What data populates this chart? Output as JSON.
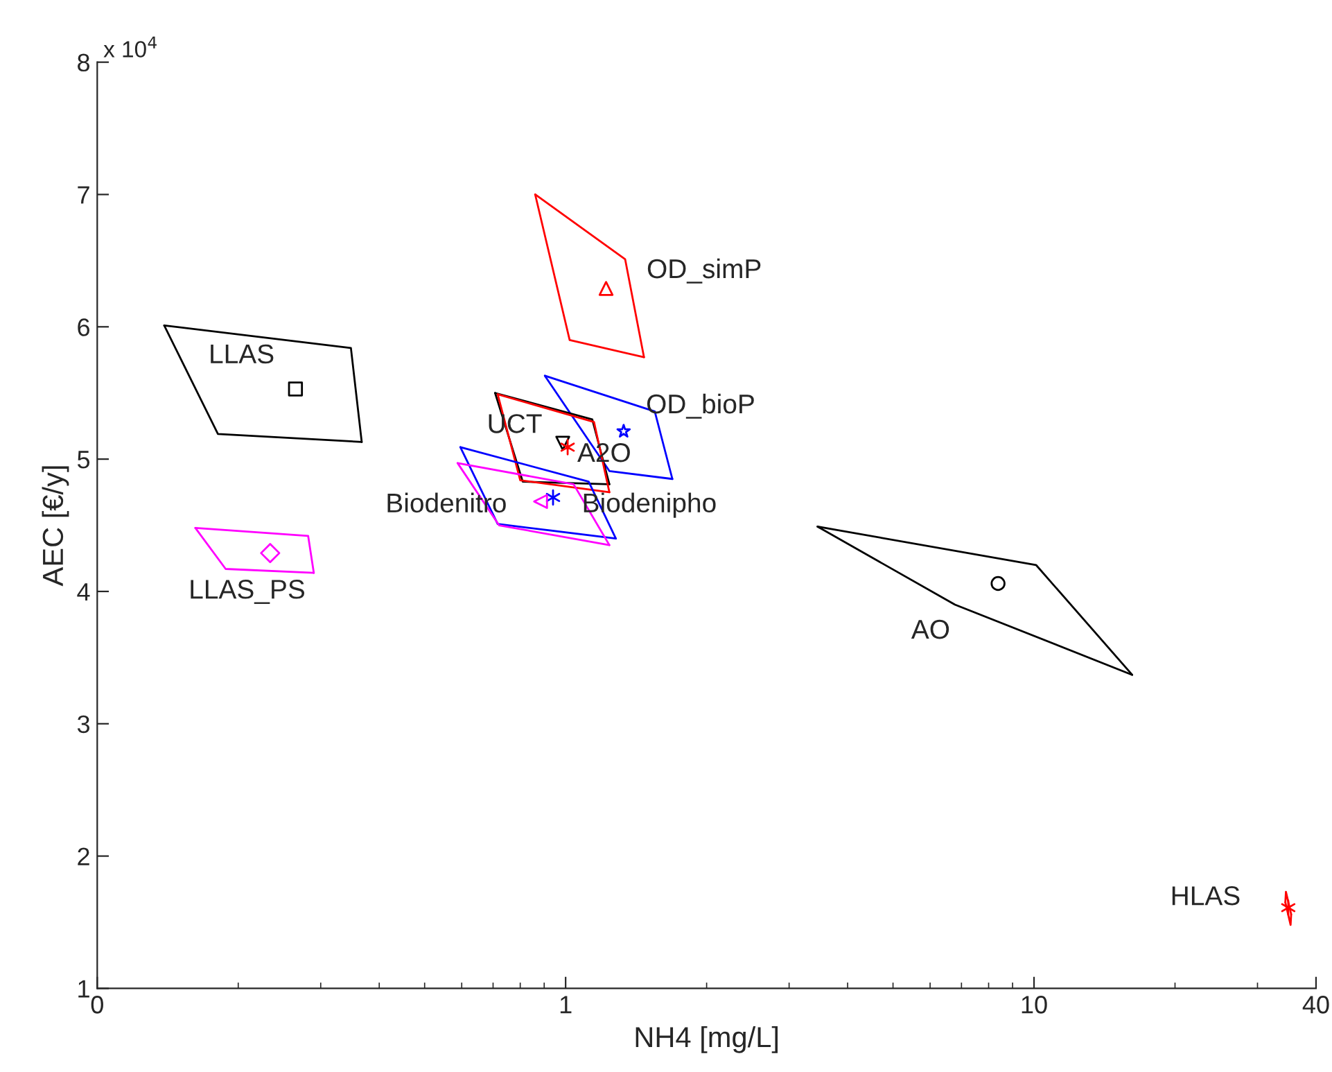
{
  "chart_data": {
    "type": "line",
    "xlabel": "NH4 [mg/L]",
    "ylabel": "AEC [€/y]",
    "log": "x",
    "xlim": [
      0.1,
      40
    ],
    "xticks": [
      {
        "value": 0.1,
        "label": "0"
      },
      1,
      10,
      40
    ],
    "ylim": [
      1,
      8
    ],
    "yticks": [
      1,
      2,
      3,
      4,
      5,
      6,
      7,
      8
    ],
    "grid": false,
    "legend": false,
    "series": [
      {
        "color": "#000000",
        "x": [
          0.139,
          0.348,
          0.367
        ],
        "values": [
          6.01,
          5.84,
          5.13
        ]
      },
      {
        "color": "#000000",
        "x": [
          0.139,
          0.181,
          0.367
        ],
        "values": [
          6.01,
          5.19,
          5.13
        ]
      },
      {
        "type": "scatter",
        "name": "LLAS",
        "marker": "square",
        "color": "#000000",
        "x": [
          0.265
        ],
        "values": [
          5.53
        ]
      },
      {
        "color": "#ff00ff",
        "x": [
          0.162,
          0.282,
          0.29
        ],
        "values": [
          4.48,
          4.42,
          4.14
        ]
      },
      {
        "color": "#ff00ff",
        "x": [
          0.162,
          0.188,
          0.29
        ],
        "values": [
          4.48,
          4.17,
          4.14
        ]
      },
      {
        "type": "scatter",
        "name": "LLAS_PS",
        "marker": "diamond",
        "color": "#ff00ff",
        "x": [
          0.234
        ],
        "values": [
          4.29
        ]
      },
      {
        "color": "#ff0000",
        "x": [
          0.861,
          1.34,
          1.47
        ],
        "values": [
          7.0,
          6.51,
          5.77
        ]
      },
      {
        "color": "#ff0000",
        "x": [
          0.861,
          1.02,
          1.47
        ],
        "values": [
          7.0,
          5.9,
          5.77
        ]
      },
      {
        "type": "scatter",
        "name": "OD_simP",
        "marker": "triangle",
        "color": "#ff0000",
        "x": [
          1.22
        ],
        "values": [
          6.29
        ]
      },
      {
        "color": "#0000ff",
        "x": [
          0.903,
          1.55,
          1.69
        ],
        "values": [
          5.63,
          5.36,
          4.85
        ]
      },
      {
        "color": "#0000ff",
        "x": [
          0.903,
          1.24,
          1.69
        ],
        "values": [
          5.63,
          4.91,
          4.85
        ]
      },
      {
        "type": "scatter",
        "name": "OD_bioP",
        "marker": "star",
        "color": "#0000ff",
        "x": [
          1.33
        ],
        "values": [
          5.21
        ]
      },
      {
        "color": "#000000",
        "x": [
          0.707,
          1.14,
          1.24
        ],
        "values": [
          5.5,
          5.3,
          4.81
        ]
      },
      {
        "color": "#000000",
        "x": [
          0.707,
          0.81,
          1.24
        ],
        "values": [
          5.5,
          4.83,
          4.81
        ]
      },
      {
        "type": "scatter",
        "name": "UCT",
        "marker": "triangle_down",
        "color": "#000000",
        "x": [
          0.986
        ],
        "values": [
          5.12
        ]
      },
      {
        "color": "#ff0000",
        "x": [
          0.716,
          1.15,
          1.24
        ],
        "values": [
          5.49,
          5.28,
          4.75
        ]
      },
      {
        "color": "#ff0000",
        "x": [
          0.716,
          0.8,
          1.24
        ],
        "values": [
          5.49,
          4.84,
          4.75
        ]
      },
      {
        "type": "scatter",
        "name": "A2O",
        "marker": "cross",
        "color": "#ff0000",
        "x": [
          1.01
        ],
        "values": [
          5.09
        ]
      },
      {
        "color": "#0000ff",
        "x": [
          0.596,
          1.12,
          1.28
        ],
        "values": [
          5.09,
          4.83,
          4.4
        ]
      },
      {
        "color": "#0000ff",
        "x": [
          0.596,
          0.716,
          1.28
        ],
        "values": [
          5.09,
          4.51,
          4.4
        ]
      },
      {
        "type": "scatter",
        "name": "Biodenipho",
        "marker": "cross",
        "color": "#0000ff",
        "x": [
          0.94
        ],
        "values": [
          4.71
        ]
      },
      {
        "color": "#ff00ff",
        "x": [
          0.588,
          1.04,
          1.24
        ],
        "values": [
          4.97,
          4.81,
          4.35
        ]
      },
      {
        "color": "#ff00ff",
        "x": [
          0.588,
          0.721,
          1.24
        ],
        "values": [
          4.97,
          4.5,
          4.35
        ]
      },
      {
        "type": "scatter",
        "name": "Biodenitro",
        "marker": "triangle_left",
        "color": "#ff00ff",
        "x": [
          0.884
        ],
        "values": [
          4.68
        ]
      },
      {
        "color": "#000000",
        "x": [
          3.45,
          10.1,
          16.2
        ],
        "values": [
          4.49,
          4.2,
          3.37
        ]
      },
      {
        "color": "#000000",
        "x": [
          3.45,
          6.78,
          16.2
        ],
        "values": [
          4.49,
          3.9,
          3.37
        ]
      },
      {
        "type": "scatter",
        "name": "AO",
        "marker": "circle",
        "color": "#000000",
        "x": [
          8.38
        ],
        "values": [
          4.06
        ]
      },
      {
        "color": "#ff0000",
        "x": [
          34.4,
          34.5,
          35.4
        ],
        "values": [
          1.65,
          1.73,
          1.56
        ]
      },
      {
        "color": "#ff0000",
        "x": [
          34.4,
          35.3,
          35.4
        ],
        "values": [
          1.65,
          1.48,
          1.56
        ]
      },
      {
        "type": "scatter",
        "name": "HLAS",
        "marker": "cross",
        "color": "#ff0000",
        "x": [
          34.9
        ],
        "values": [
          1.61
        ]
      }
    ],
    "annotations": [
      "x 10$^{4}$"
    ]
  }
}
